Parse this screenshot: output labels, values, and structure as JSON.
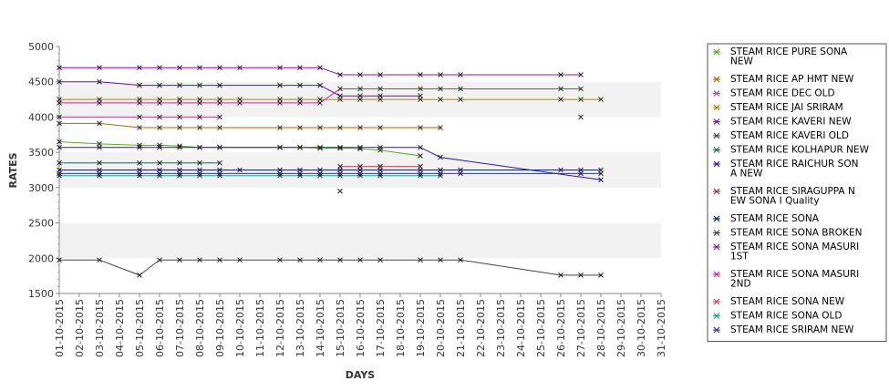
{
  "chart_data": {
    "type": "line",
    "title": "",
    "xlabel": "DAYS",
    "ylabel": "RATES",
    "ylim": [
      1500,
      5000
    ],
    "yticks": [
      1500,
      2000,
      2500,
      3000,
      3500,
      4000,
      4500,
      5000
    ],
    "grid": "alternating horizontal bands",
    "legend_position": "right",
    "x": [
      "01-10-2015",
      "02-10-2015",
      "03-10-2015",
      "04-10-2015",
      "05-10-2015",
      "06-10-2015",
      "07-10-2015",
      "08-10-2015",
      "09-10-2015",
      "10-10-2015",
      "11-10-2015",
      "12-10-2015",
      "13-10-2015",
      "14-10-2015",
      "15-10-2015",
      "16-10-2015",
      "17-10-2015",
      "18-10-2015",
      "19-10-2015",
      "20-10-2015",
      "21-10-2015",
      "22-10-2015",
      "23-10-2015",
      "24-10-2015",
      "25-10-2015",
      "26-10-2015",
      "27-10-2015",
      "28-10-2015",
      "29-10-2015",
      "30-10-2015",
      "31-10-2015"
    ],
    "series": [
      {
        "name": " STEAM RICE PURE SONA NEW",
        "color": "#55aa22",
        "points": [
          [
            "01-10-2015",
            3650
          ],
          [
            "03-10-2015",
            3620
          ],
          [
            "05-10-2015",
            3600
          ],
          [
            "06-10-2015",
            3600
          ],
          [
            "07-10-2015",
            3590
          ],
          [
            "08-10-2015",
            3570
          ],
          [
            "09-10-2015",
            3570
          ],
          [
            "12-10-2015",
            3570
          ],
          [
            "13-10-2015",
            3570
          ],
          [
            "14-10-2015",
            3560
          ],
          [
            "15-10-2015",
            3560
          ],
          [
            "16-10-2015",
            3550
          ],
          [
            "17-10-2015",
            3530
          ],
          [
            "19-10-2015",
            3450
          ]
        ]
      },
      {
        "name": "STEAM RICE AP HMT NEW",
        "color": "#aa6600",
        "points": [
          [
            "01-10-2015",
            3910
          ],
          [
            "03-10-2015",
            3910
          ],
          [
            "05-10-2015",
            3850
          ],
          [
            "06-10-2015",
            3850
          ],
          [
            "07-10-2015",
            3850
          ],
          [
            "08-10-2015",
            3850
          ],
          [
            "09-10-2015",
            3850
          ],
          [
            "12-10-2015",
            3850
          ],
          [
            "13-10-2015",
            3850
          ],
          [
            "14-10-2015",
            3850
          ],
          [
            "15-10-2015",
            3850
          ],
          [
            "16-10-2015",
            3850
          ],
          [
            "17-10-2015",
            3850
          ],
          [
            "19-10-2015",
            3850
          ],
          [
            "20-10-2015",
            3850
          ]
        ]
      },
      {
        "name": "STEAM RICE DEC OLD",
        "color": "#aa44aa",
        "points": [
          [
            "01-10-2015",
            4000
          ],
          [
            "05-10-2015",
            4000
          ],
          [
            "06-10-2015",
            4000
          ],
          [
            "07-10-2015",
            4000
          ],
          [
            "08-10-2015",
            4000
          ],
          [
            "09-10-2015",
            4000
          ]
        ]
      },
      {
        "name": "STEAM RICE JAI SRIRAM",
        "color": "#aa8800",
        "points": [
          [
            "01-10-2015",
            4250
          ],
          [
            "03-10-2015",
            4250
          ],
          [
            "05-10-2015",
            4250
          ],
          [
            "06-10-2015",
            4250
          ],
          [
            "07-10-2015",
            4250
          ],
          [
            "08-10-2015",
            4250
          ],
          [
            "09-10-2015",
            4250
          ],
          [
            "10-10-2015",
            4250
          ],
          [
            "12-10-2015",
            4250
          ],
          [
            "13-10-2015",
            4250
          ],
          [
            "14-10-2015",
            4250
          ],
          [
            "15-10-2015",
            4250
          ],
          [
            "16-10-2015",
            4250
          ],
          [
            "17-10-2015",
            4250
          ],
          [
            "19-10-2015",
            4250
          ],
          [
            "20-10-2015",
            4250
          ],
          [
            "21-10-2015",
            4250
          ],
          [
            "26-10-2015",
            4250
          ],
          [
            "27-10-2015",
            4250
          ],
          [
            "28-10-2015",
            4250
          ]
        ]
      },
      {
        "name": "STEAM RICE KAVERI NEW",
        "color": "#6611aa",
        "points": [
          [
            "01-10-2015",
            4500
          ],
          [
            "03-10-2015",
            4500
          ],
          [
            "05-10-2015",
            4450
          ],
          [
            "06-10-2015",
            4450
          ],
          [
            "07-10-2015",
            4450
          ],
          [
            "08-10-2015",
            4450
          ],
          [
            "09-10-2015",
            4450
          ],
          [
            "12-10-2015",
            4450
          ],
          [
            "13-10-2015",
            4450
          ],
          [
            "14-10-2015",
            4450
          ],
          [
            "15-10-2015",
            4300
          ],
          [
            "16-10-2015",
            4300
          ],
          [
            "17-10-2015",
            4300
          ],
          [
            "19-10-2015",
            4300
          ]
        ]
      },
      {
        "name": "STEAM RICE KAVERI OLD",
        "color": "#444444",
        "points": [
          [
            "27-10-2015",
            4000
          ]
        ]
      },
      {
        "name": "STEAM RICE KOLHAPUR NEW",
        "color": "#226655",
        "points": [
          [
            "01-10-2015",
            3350
          ],
          [
            "03-10-2015",
            3350
          ],
          [
            "05-10-2015",
            3350
          ],
          [
            "06-10-2015",
            3350
          ],
          [
            "07-10-2015",
            3350
          ],
          [
            "08-10-2015",
            3350
          ],
          [
            "09-10-2015",
            3350
          ]
        ]
      },
      {
        "name": "STEAM RICE RAICHUR SONA NEW",
        "color": "#3311aa",
        "points": [
          [
            "01-10-2015",
            3570
          ],
          [
            "03-10-2015",
            3570
          ],
          [
            "05-10-2015",
            3570
          ],
          [
            "06-10-2015",
            3570
          ],
          [
            "07-10-2015",
            3570
          ],
          [
            "08-10-2015",
            3570
          ],
          [
            "09-10-2015",
            3570
          ],
          [
            "12-10-2015",
            3570
          ],
          [
            "13-10-2015",
            3570
          ],
          [
            "14-10-2015",
            3570
          ],
          [
            "15-10-2015",
            3570
          ],
          [
            "16-10-2015",
            3570
          ],
          [
            "17-10-2015",
            3570
          ],
          [
            "19-10-2015",
            3570
          ],
          [
            "20-10-2015",
            3430
          ],
          [
            "28-10-2015",
            3110
          ]
        ]
      },
      {
        "name": "STEAM RICE SIRAGUPPA NEW SONA I Quality",
        "color": "#993333",
        "points": [
          [
            "15-10-2015",
            2950
          ]
        ]
      },
      {
        "name": "STEAM RICE SONA",
        "color": "#112288",
        "points": [
          [
            "01-10-2015",
            3250
          ],
          [
            "03-10-2015",
            3250
          ],
          [
            "05-10-2015",
            3250
          ],
          [
            "06-10-2015",
            3250
          ],
          [
            "07-10-2015",
            3250
          ],
          [
            "08-10-2015",
            3250
          ],
          [
            "09-10-2015",
            3250
          ],
          [
            "10-10-2015",
            3250
          ],
          [
            "12-10-2015",
            3250
          ],
          [
            "13-10-2015",
            3250
          ],
          [
            "14-10-2015",
            3250
          ],
          [
            "15-10-2015",
            3250
          ],
          [
            "16-10-2015",
            3250
          ],
          [
            "17-10-2015",
            3250
          ],
          [
            "19-10-2015",
            3250
          ],
          [
            "20-10-2015",
            3250
          ],
          [
            "21-10-2015",
            3250
          ],
          [
            "26-10-2015",
            3250
          ],
          [
            "27-10-2015",
            3250
          ],
          [
            "28-10-2015",
            3250
          ]
        ]
      },
      {
        "name": "STEAM RICE SONA BROKEN",
        "color": "#444444",
        "points": [
          [
            "01-10-2015",
            1975
          ],
          [
            "03-10-2015",
            1975
          ],
          [
            "05-10-2015",
            1760
          ],
          [
            "06-10-2015",
            1975
          ],
          [
            "07-10-2015",
            1975
          ],
          [
            "08-10-2015",
            1975
          ],
          [
            "09-10-2015",
            1975
          ],
          [
            "10-10-2015",
            1975
          ],
          [
            "12-10-2015",
            1975
          ],
          [
            "13-10-2015",
            1975
          ],
          [
            "14-10-2015",
            1975
          ],
          [
            "15-10-2015",
            1975
          ],
          [
            "16-10-2015",
            1975
          ],
          [
            "17-10-2015",
            1975
          ],
          [
            "19-10-2015",
            1975
          ],
          [
            "20-10-2015",
            1975
          ],
          [
            "21-10-2015",
            1975
          ],
          [
            "26-10-2015",
            1760
          ],
          [
            "27-10-2015",
            1760
          ],
          [
            "28-10-2015",
            1760
          ]
        ]
      },
      {
        "name": "STEAM RICE SONA MASURI 1ST",
        "color": "#8811aa",
        "points": [
          [
            "01-10-2015",
            4700
          ],
          [
            "03-10-2015",
            4700
          ],
          [
            "05-10-2015",
            4700
          ],
          [
            "06-10-2015",
            4700
          ],
          [
            "07-10-2015",
            4700
          ],
          [
            "08-10-2015",
            4700
          ],
          [
            "09-10-2015",
            4700
          ],
          [
            "10-10-2015",
            4700
          ],
          [
            "12-10-2015",
            4700
          ],
          [
            "13-10-2015",
            4700
          ],
          [
            "14-10-2015",
            4700
          ],
          [
            "15-10-2015",
            4600
          ],
          [
            "16-10-2015",
            4600
          ],
          [
            "17-10-2015",
            4600
          ],
          [
            "19-10-2015",
            4600
          ],
          [
            "20-10-2015",
            4600
          ],
          [
            "21-10-2015",
            4600
          ],
          [
            "26-10-2015",
            4600
          ],
          [
            "27-10-2015",
            4600
          ]
        ]
      },
      {
        "name": "STEAM RICE SONA MASURI 2ND",
        "color": "#cc22aa",
        "points": [
          [
            "01-10-2015",
            4200
          ],
          [
            "03-10-2015",
            4200
          ],
          [
            "05-10-2015",
            4200
          ],
          [
            "06-10-2015",
            4200
          ],
          [
            "07-10-2015",
            4200
          ],
          [
            "08-10-2015",
            4200
          ],
          [
            "09-10-2015",
            4200
          ],
          [
            "10-10-2015",
            4200
          ],
          [
            "12-10-2015",
            4200
          ],
          [
            "13-10-2015",
            4200
          ],
          [
            "14-10-2015",
            4200
          ],
          [
            "15-10-2015",
            4400
          ],
          [
            "16-10-2015",
            4400
          ],
          [
            "17-10-2015",
            4400
          ],
          [
            "19-10-2015",
            4400
          ],
          [
            "20-10-2015",
            4400
          ],
          [
            "21-10-2015",
            4400
          ],
          [
            "26-10-2015",
            4400
          ],
          [
            "27-10-2015",
            4400
          ]
        ]
      },
      {
        "name": "STEAM RICE SONA NEW",
        "color": "#cc4444",
        "points": [
          [
            "15-10-2015",
            3300
          ],
          [
            "16-10-2015",
            3300
          ],
          [
            "17-10-2015",
            3300
          ],
          [
            "19-10-2015",
            3300
          ]
        ]
      },
      {
        "name": "STEAM RICE SONA OLD",
        "color": "#11aa88",
        "points": [
          [
            "01-10-2015",
            3170
          ],
          [
            "03-10-2015",
            3170
          ],
          [
            "05-10-2015",
            3170
          ],
          [
            "06-10-2015",
            3170
          ],
          [
            "07-10-2015",
            3170
          ],
          [
            "08-10-2015",
            3170
          ],
          [
            "09-10-2015",
            3170
          ],
          [
            "12-10-2015",
            3170
          ],
          [
            "13-10-2015",
            3170
          ],
          [
            "14-10-2015",
            3170
          ],
          [
            "15-10-2015",
            3170
          ],
          [
            "16-10-2015",
            3170
          ],
          [
            "17-10-2015",
            3170
          ],
          [
            "19-10-2015",
            3170
          ],
          [
            "20-10-2015",
            3170
          ]
        ]
      },
      {
        "name": "STEAM RICE SRIRAM NEW",
        "color": "#333388",
        "points": [
          [
            "01-10-2015",
            3200
          ],
          [
            "03-10-2015",
            3200
          ],
          [
            "05-10-2015",
            3200
          ],
          [
            "06-10-2015",
            3200
          ],
          [
            "07-10-2015",
            3200
          ],
          [
            "08-10-2015",
            3200
          ],
          [
            "09-10-2015",
            3200
          ],
          [
            "12-10-2015",
            3200
          ],
          [
            "13-10-2015",
            3200
          ],
          [
            "14-10-2015",
            3200
          ],
          [
            "15-10-2015",
            3200
          ],
          [
            "16-10-2015",
            3200
          ],
          [
            "17-10-2015",
            3200
          ],
          [
            "19-10-2015",
            3200
          ],
          [
            "20-10-2015",
            3200
          ],
          [
            "21-10-2015",
            3200
          ],
          [
            "27-10-2015",
            3200
          ],
          [
            "28-10-2015",
            3200
          ]
        ]
      }
    ]
  }
}
